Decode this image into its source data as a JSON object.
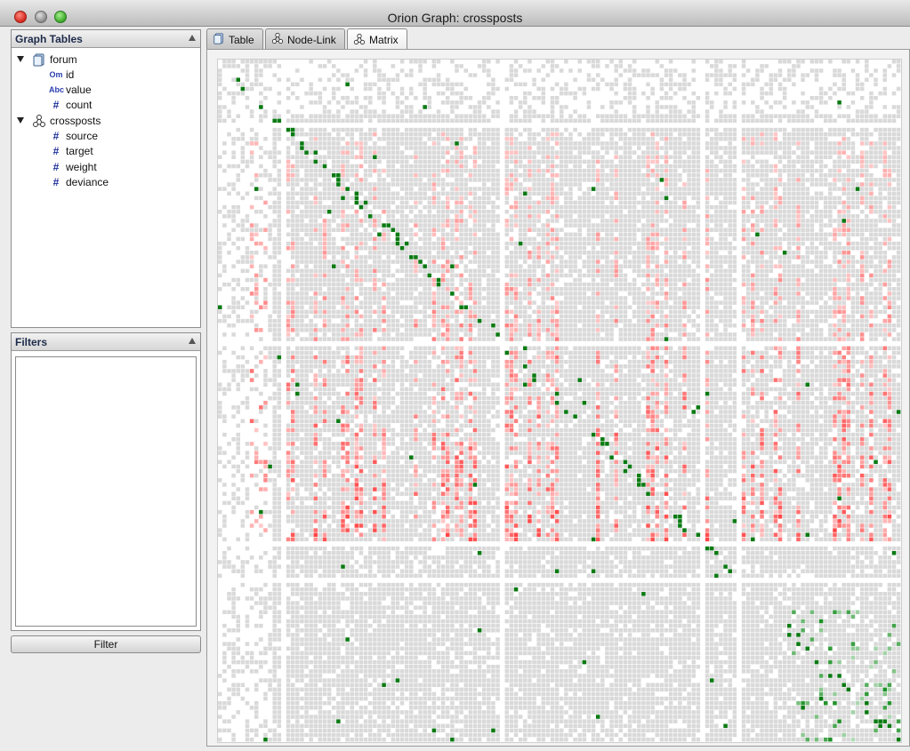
{
  "window": {
    "title": "Orion Graph: crossposts"
  },
  "graph_tables": {
    "header": "Graph Tables",
    "tables": [
      {
        "name": "forum",
        "kind": "table",
        "columns": [
          {
            "name": "id",
            "type_icon": "Om"
          },
          {
            "name": "value",
            "type_icon": "Abc"
          },
          {
            "name": "count",
            "type_icon": "#"
          }
        ]
      },
      {
        "name": "crossposts",
        "kind": "graph",
        "columns": [
          {
            "name": "source",
            "type_icon": "#"
          },
          {
            "name": "target",
            "type_icon": "#"
          },
          {
            "name": "weight",
            "type_icon": "#"
          },
          {
            "name": "deviance",
            "type_icon": "#"
          }
        ]
      }
    ]
  },
  "filters": {
    "header": "Filters",
    "button_label": "Filter"
  },
  "tabs": [
    {
      "label": "Table",
      "icon": "table-icon",
      "active": false
    },
    {
      "label": "Node-Link",
      "icon": "graph-icon",
      "active": false
    },
    {
      "label": "Matrix",
      "icon": "graph-icon",
      "active": true
    }
  ],
  "matrix": {
    "colors": {
      "empty": "#ffffff",
      "neutral": "#d9d9d9",
      "high_deviance": "#ff1a1a",
      "low_deviance": "#0a7a12"
    }
  }
}
